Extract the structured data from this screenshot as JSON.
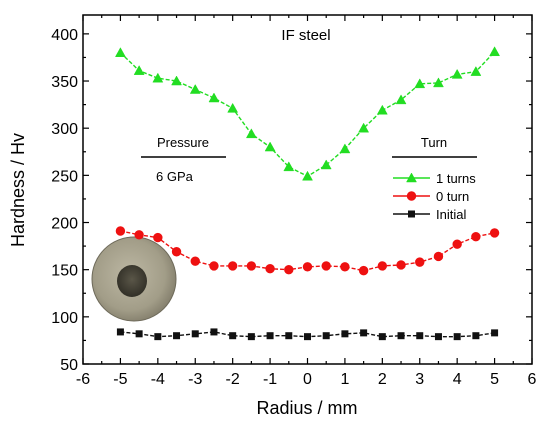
{
  "chart_data": {
    "type": "line",
    "title": "IF steel",
    "xlabel": "Radius / mm",
    "ylabel": "Hardness / Hv",
    "xlim": [
      -6,
      6
    ],
    "ylim": [
      50,
      420
    ],
    "xticks": [
      -6,
      -5,
      -4,
      -3,
      -2,
      -1,
      0,
      1,
      2,
      3,
      4,
      5,
      6
    ],
    "yticks": [
      50,
      100,
      150,
      200,
      250,
      300,
      350,
      400
    ],
    "grid": false,
    "legend_position": "right",
    "annotations": {
      "pressure_header": "Pressure",
      "pressure_value": "6 GPa",
      "turn_header": "Turn"
    },
    "inset_image": "sample-disc",
    "series": [
      {
        "name": "1 turns",
        "color": "#22dd22",
        "marker": "triangle",
        "x": [
          -5,
          -4.5,
          -4,
          -3.5,
          -3,
          -2.5,
          -2,
          -1.5,
          -1,
          -0.5,
          0,
          0.5,
          1,
          1.5,
          2,
          2.5,
          3,
          3.5,
          4,
          4.5,
          5
        ],
        "y": [
          380,
          361,
          353,
          350,
          341,
          332,
          321,
          294,
          280,
          259,
          249,
          261,
          278,
          300,
          319,
          330,
          347,
          348,
          357,
          360,
          381
        ]
      },
      {
        "name": "0 turn",
        "color": "#ee1111",
        "marker": "circle",
        "x": [
          -5,
          -4.5,
          -4,
          -3.5,
          -3,
          -2.5,
          -2,
          -1.5,
          -1,
          -0.5,
          0,
          0.5,
          1,
          1.5,
          2,
          2.5,
          3,
          3.5,
          4,
          4.5,
          5
        ],
        "y": [
          191,
          187,
          184,
          169,
          159,
          154,
          154,
          154,
          151,
          150,
          153,
          154,
          153,
          149,
          154,
          155,
          158,
          164,
          177,
          185,
          189
        ]
      },
      {
        "name": "Initial",
        "color": "#111111",
        "marker": "square",
        "x": [
          -5,
          -4.5,
          -4,
          -3.5,
          -3,
          -2.5,
          -2,
          -1.5,
          -1,
          -0.5,
          0,
          0.5,
          1,
          1.5,
          2,
          2.5,
          3,
          3.5,
          4,
          4.5,
          5
        ],
        "y": [
          84,
          82,
          79,
          80,
          82,
          84,
          80,
          79,
          80,
          80,
          79,
          80,
          82,
          83,
          79,
          80,
          80,
          79,
          79,
          80,
          83
        ]
      }
    ]
  }
}
